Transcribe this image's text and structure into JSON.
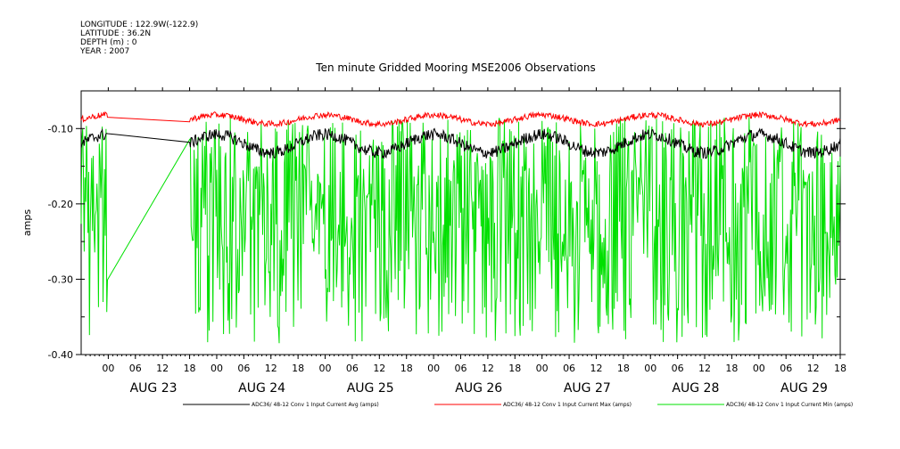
{
  "header": {
    "longitude": "LONGITUDE : 122.9W(-122.9)",
    "latitude": "LATITUDE : 36.2N",
    "depth": "DEPTH (m) : 0",
    "year": "YEAR : 2007"
  },
  "chart_data": {
    "type": "line",
    "title": "Ten minute Gridded Mooring MSE2006 Observations",
    "ylabel": "amps",
    "xlabel": "",
    "ylim": [
      -0.4,
      -0.05
    ],
    "y_ticks": [
      -0.1,
      -0.2,
      -0.3,
      -0.4
    ],
    "y_tick_labels": [
      "-0.10",
      "-0.20",
      "-0.30",
      "-0.40"
    ],
    "x_range_hours": [
      0,
      168
    ],
    "x_ticks": [
      "00",
      "06",
      "12",
      "18",
      "00",
      "06",
      "12",
      "18",
      "00",
      "06",
      "12",
      "18",
      "00",
      "06",
      "12",
      "18",
      "00",
      "06",
      "12",
      "18",
      "00",
      "06",
      "12",
      "18",
      "00",
      "06",
      "12",
      "18"
    ],
    "x_tick_hours": [
      6,
      12,
      18,
      24,
      30,
      36,
      42,
      48,
      54,
      60,
      66,
      72,
      78,
      84,
      90,
      96,
      102,
      108,
      114,
      120,
      126,
      132,
      138,
      144,
      150,
      156,
      162,
      168
    ],
    "date_labels": [
      "AUG 23",
      "AUG 24",
      "AUG 25",
      "AUG 26",
      "AUG 27",
      "AUG 28",
      "AUG 29"
    ],
    "date_label_hours": [
      16,
      40,
      64,
      88,
      112,
      136,
      160
    ],
    "gap_hours": [
      6,
      24
    ],
    "series": [
      {
        "name": "ADC36/ 48-12 Conv 1 Input Current Avg (amps)",
        "color": "#000000",
        "mean": -0.12,
        "amp": 0.012,
        "noise": 0.008
      },
      {
        "name": "ADC36/ 48-12 Conv 1 Input Current Max (amps)",
        "color": "#ff0000",
        "mean": -0.088,
        "amp": 0.006,
        "noise": 0.004
      },
      {
        "name": "ADC36/ 48-12 Conv 1 Input Current Min (amps)",
        "color": "#00e000",
        "mean": -0.245,
        "amp": 0.04,
        "noise": 0.06
      }
    ]
  }
}
